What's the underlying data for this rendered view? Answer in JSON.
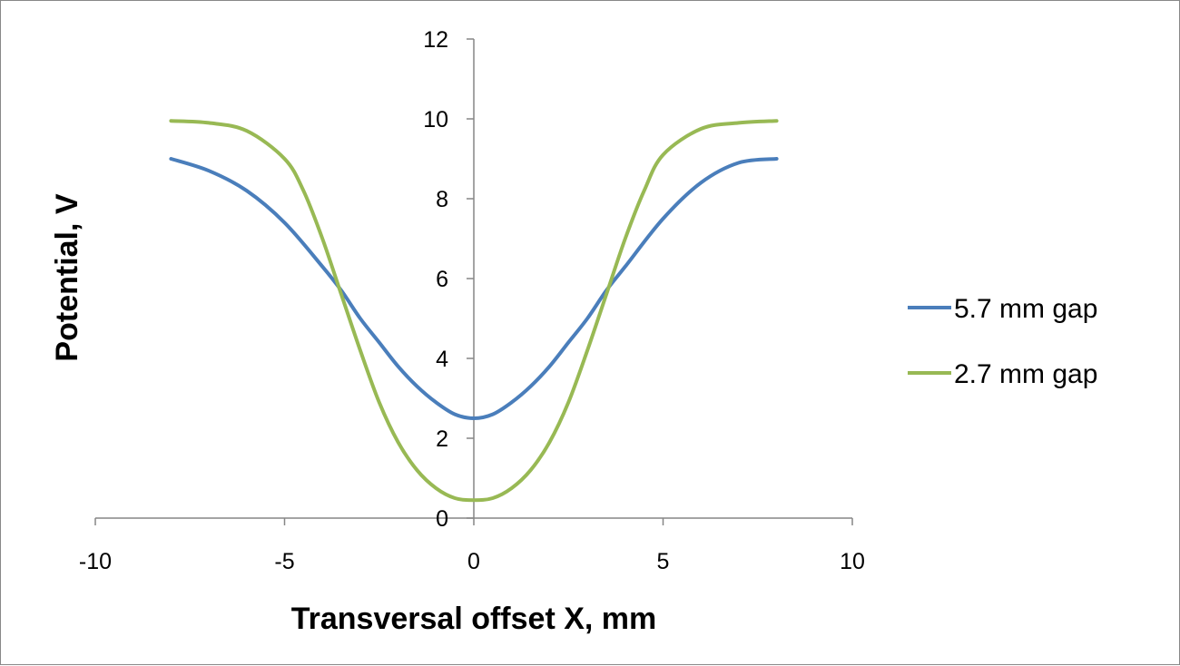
{
  "chart_data": {
    "type": "line",
    "title": "",
    "xlabel": "Transversal offset X, mm",
    "ylabel": "Potential, V",
    "xlim": [
      -10,
      10
    ],
    "ylim": [
      0,
      12
    ],
    "xticks": [
      -10,
      -5,
      0,
      5,
      10
    ],
    "yticks": [
      0,
      2,
      4,
      6,
      8,
      10,
      12
    ],
    "xtick_labels": [
      "-10",
      "-5",
      "0",
      "5",
      "10"
    ],
    "ytick_labels": [
      "0",
      "2",
      "4",
      "6",
      "8",
      "10",
      "12"
    ],
    "grid": false,
    "legend": "right",
    "series": [
      {
        "name": "5.7 mm gap",
        "color": "#4a7ebb",
        "x": [
          -8,
          -7,
          -6,
          -5,
          -4,
          -3.5,
          -3,
          -2.5,
          -2,
          -1.5,
          -1,
          -0.5,
          0,
          0.5,
          1,
          1.5,
          2,
          2.5,
          3,
          3.5,
          4,
          5,
          6,
          7,
          8
        ],
        "y": [
          9.0,
          8.7,
          8.2,
          7.4,
          6.3,
          5.7,
          5.0,
          4.4,
          3.8,
          3.3,
          2.9,
          2.6,
          2.5,
          2.6,
          2.9,
          3.3,
          3.8,
          4.4,
          5.0,
          5.7,
          6.3,
          7.5,
          8.4,
          8.9,
          9.0
        ]
      },
      {
        "name": "2.7 mm gap",
        "color": "#98b954",
        "x": [
          -8,
          -7,
          -6,
          -5,
          -4.5,
          -4,
          -3.5,
          -3,
          -2.5,
          -2,
          -1.5,
          -1,
          -0.5,
          0,
          0.5,
          1,
          1.5,
          2,
          2.5,
          3,
          3.5,
          4,
          4.5,
          5,
          6,
          7,
          8
        ],
        "y": [
          9.95,
          9.9,
          9.7,
          9.0,
          8.2,
          7.0,
          5.6,
          4.2,
          2.9,
          1.9,
          1.2,
          0.75,
          0.5,
          0.45,
          0.5,
          0.75,
          1.2,
          1.9,
          2.9,
          4.2,
          5.6,
          7.0,
          8.2,
          9.1,
          9.75,
          9.9,
          9.95
        ]
      }
    ]
  }
}
